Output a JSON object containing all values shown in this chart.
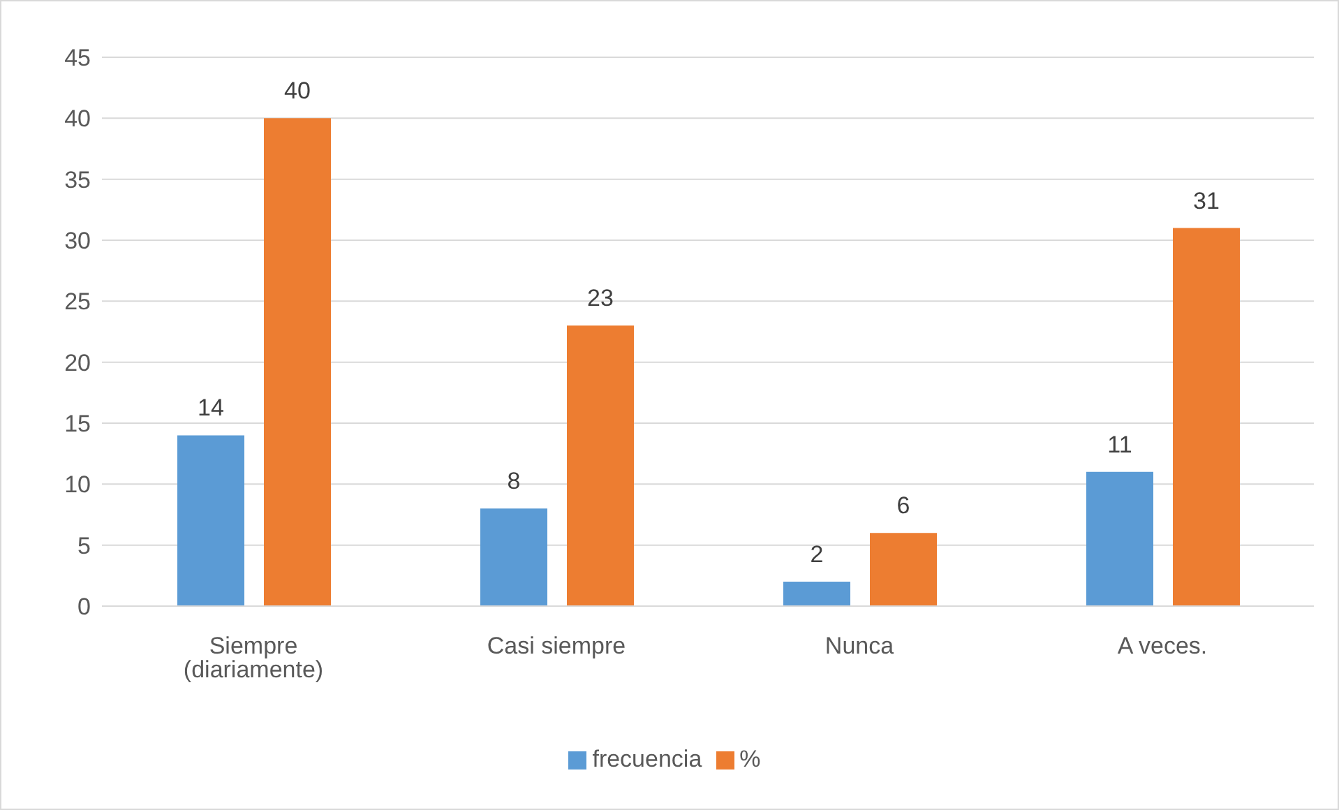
{
  "chart_data": {
    "type": "bar",
    "categories": [
      "Siempre (diariamente)",
      "Casi siempre",
      "Nunca",
      "A veces."
    ],
    "series": [
      {
        "name": "frecuencia",
        "color": "#5b9bd5",
        "values": [
          14,
          8,
          2,
          11
        ]
      },
      {
        "name": "%",
        "color": "#ed7d31",
        "values": [
          40,
          23,
          6,
          31
        ]
      }
    ],
    "ylim": [
      0,
      45
    ],
    "yticks": [
      0,
      5,
      10,
      15,
      20,
      25,
      30,
      35,
      40,
      45
    ],
    "grid": "y",
    "legend": "bottom",
    "data_labels": true
  }
}
